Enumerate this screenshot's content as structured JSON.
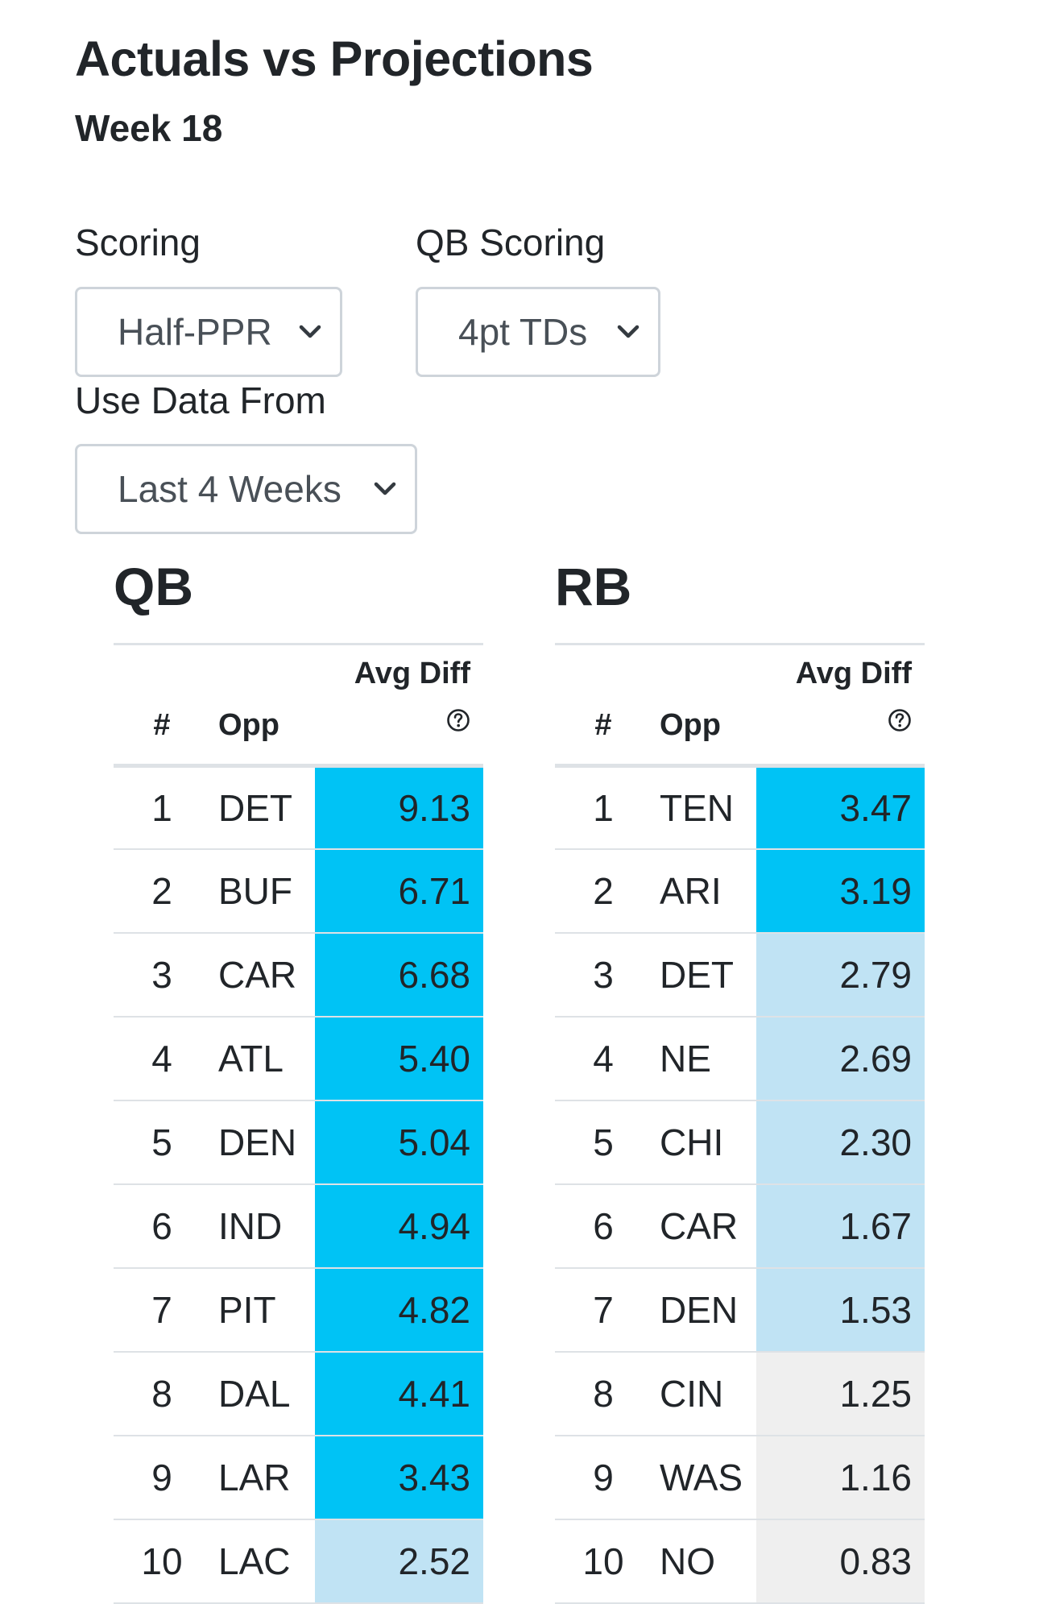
{
  "header": {
    "title": "Actuals vs Projections",
    "subtitle": "Week 18"
  },
  "filters": {
    "scoring": {
      "label": "Scoring",
      "value": "Half-PPR"
    },
    "qb_scoring": {
      "label": "QB Scoring",
      "value": "4pt TDs"
    },
    "data_from": {
      "label": "Use Data From",
      "value": "Last 4 Weeks"
    }
  },
  "table_headers": {
    "num": "#",
    "opp": "Opp",
    "avg_diff": "Avg Diff",
    "help_icon": "question-circle-icon"
  },
  "colors": {
    "strong": "#00c3f5",
    "medium": "#c0e3f4",
    "neutral": "#efefef"
  },
  "qb": {
    "title": "QB",
    "rows": [
      {
        "rank": "1",
        "opp": "DET",
        "diff": "9.13",
        "level": "strong"
      },
      {
        "rank": "2",
        "opp": "BUF",
        "diff": "6.71",
        "level": "strong"
      },
      {
        "rank": "3",
        "opp": "CAR",
        "diff": "6.68",
        "level": "strong"
      },
      {
        "rank": "4",
        "opp": "ATL",
        "diff": "5.40",
        "level": "strong"
      },
      {
        "rank": "5",
        "opp": "DEN",
        "diff": "5.04",
        "level": "strong"
      },
      {
        "rank": "6",
        "opp": "IND",
        "diff": "4.94",
        "level": "strong"
      },
      {
        "rank": "7",
        "opp": "PIT",
        "diff": "4.82",
        "level": "strong"
      },
      {
        "rank": "8",
        "opp": "DAL",
        "diff": "4.41",
        "level": "strong"
      },
      {
        "rank": "9",
        "opp": "LAR",
        "diff": "3.43",
        "level": "strong"
      },
      {
        "rank": "10",
        "opp": "LAC",
        "diff": "2.52",
        "level": "medium"
      }
    ]
  },
  "rb": {
    "title": "RB",
    "rows": [
      {
        "rank": "1",
        "opp": "TEN",
        "diff": "3.47",
        "level": "strong"
      },
      {
        "rank": "2",
        "opp": "ARI",
        "diff": "3.19",
        "level": "strong"
      },
      {
        "rank": "3",
        "opp": "DET",
        "diff": "2.79",
        "level": "medium"
      },
      {
        "rank": "4",
        "opp": "NE",
        "diff": "2.69",
        "level": "medium"
      },
      {
        "rank": "5",
        "opp": "CHI",
        "diff": "2.30",
        "level": "medium"
      },
      {
        "rank": "6",
        "opp": "CAR",
        "diff": "1.67",
        "level": "medium"
      },
      {
        "rank": "7",
        "opp": "DEN",
        "diff": "1.53",
        "level": "medium"
      },
      {
        "rank": "8",
        "opp": "CIN",
        "diff": "1.25",
        "level": "neutral"
      },
      {
        "rank": "9",
        "opp": "WAS",
        "diff": "1.16",
        "level": "neutral"
      },
      {
        "rank": "10",
        "opp": "NO",
        "diff": "0.83",
        "level": "neutral"
      }
    ]
  }
}
